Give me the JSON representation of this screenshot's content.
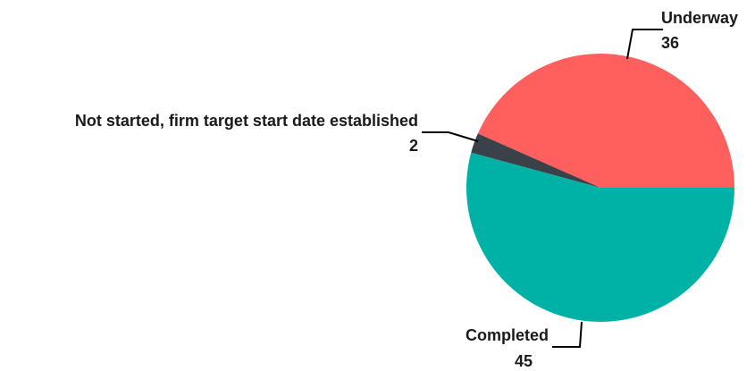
{
  "chart_data": {
    "type": "pie",
    "title": "",
    "legend": "none",
    "slices": [
      {
        "name": "Underway",
        "value": 36,
        "value_label": "36",
        "color": "#FF5F5D"
      },
      {
        "name": "Not started, firm target start date established",
        "value": 2,
        "value_label": "2",
        "color": "#3A4149"
      },
      {
        "name": "Completed",
        "value": 45,
        "value_label": "45",
        "color": "#00B2A5"
      }
    ]
  }
}
